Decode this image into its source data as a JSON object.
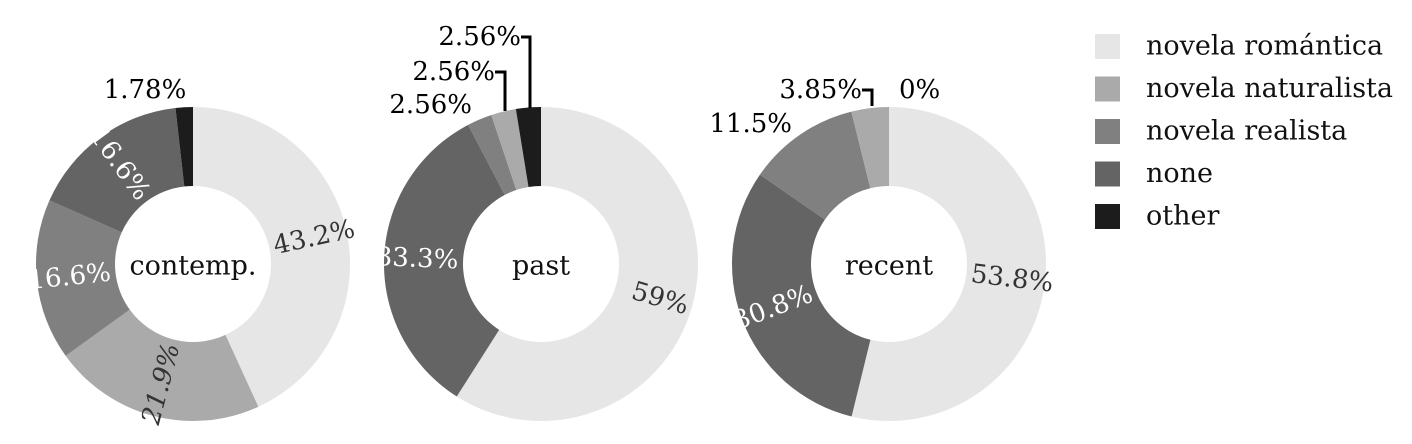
{
  "chart_data": {
    "type": "pie",
    "legend": {
      "placement": "right",
      "entries": [
        {
          "name": "novela romántica",
          "color": "#e6e6e6"
        },
        {
          "name": "novela naturalista",
          "color": "#aaaaaa"
        },
        {
          "name": "novela realista",
          "color": "#808080"
        },
        {
          "name": "none",
          "color": "#646464"
        },
        {
          "name": "other",
          "color": "#1c1c1c"
        }
      ]
    },
    "charts": [
      {
        "center_label": "contemp.",
        "slices": [
          {
            "category": "novela romántica",
            "value": 43.2,
            "label": "43.2%"
          },
          {
            "category": "novela naturalista",
            "value": 21.9,
            "label": "21.9%"
          },
          {
            "category": "novela realista",
            "value": 16.6,
            "label": "16.6%"
          },
          {
            "category": "none",
            "value": 16.6,
            "label": "16.6%"
          },
          {
            "category": "other",
            "value": 1.78,
            "label": "1.78%"
          }
        ]
      },
      {
        "center_label": "past",
        "slices": [
          {
            "category": "novela romántica",
            "value": 59,
            "label": "59%"
          },
          {
            "category": "none",
            "value": 33.3,
            "label": "33.3%"
          },
          {
            "category": "novela realista",
            "value": 2.56,
            "label": "2.56%"
          },
          {
            "category": "novela naturalista",
            "value": 2.56,
            "label": "2.56%"
          },
          {
            "category": "other",
            "value": 2.56,
            "label": "2.56%"
          }
        ]
      },
      {
        "center_label": "recent",
        "slices": [
          {
            "category": "novela romántica",
            "value": 53.8,
            "label": "53.8%"
          },
          {
            "category": "none",
            "value": 30.8,
            "label": "30.8%"
          },
          {
            "category": "novela realista",
            "value": 11.5,
            "label": "11.5%"
          },
          {
            "category": "novela naturalista",
            "value": 3.85,
            "label": "3.85%"
          },
          {
            "category": "other",
            "value": 0,
            "label": "0%"
          }
        ]
      }
    ]
  }
}
